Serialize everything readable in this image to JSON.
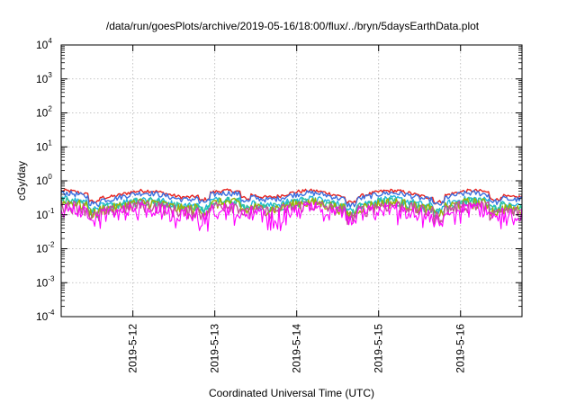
{
  "chart_data": {
    "type": "line",
    "title": "/data/run/goesPlots/archive/2019-05-16/18:00/flux/../bryn/5daysEarthData.plot",
    "xlabel": "Coordinated Universal Time (UTC)",
    "ylabel": "cGy/day",
    "yscale": "log",
    "ylim": [
      0.0001,
      10000
    ],
    "xlim": [
      "2019-05-11T03:00",
      "2019-05-16T18:00"
    ],
    "grid": true,
    "legend": "none",
    "x_ticks": [
      "2019-5-12",
      "2019-5-13",
      "2019-5-14",
      "2019-5-15",
      "2019-5-16"
    ],
    "y_ticks": [
      {
        "base": "10",
        "exp": "4"
      },
      {
        "base": "10",
        "exp": "3"
      },
      {
        "base": "10",
        "exp": "2"
      },
      {
        "base": "10",
        "exp": "1"
      },
      {
        "base": "10",
        "exp": "0"
      },
      {
        "base": "10",
        "exp": "-1"
      },
      {
        "base": "10",
        "exp": "-2"
      },
      {
        "base": "10",
        "exp": "-3"
      },
      {
        "base": "10",
        "exp": "-4"
      }
    ],
    "series": [
      {
        "color": "#e8231e",
        "level": 0.42
      },
      {
        "color": "#3a6fe0",
        "level": 0.36
      },
      {
        "color": "#1fb5e0",
        "level": 0.24
      },
      {
        "color": "#2fc49a",
        "level": 0.21
      },
      {
        "color": "#9cb400",
        "level": 0.19
      },
      {
        "color": "#c0509a",
        "level": 0.16
      },
      {
        "color": "#ff00ff",
        "level": 0.13
      }
    ]
  }
}
